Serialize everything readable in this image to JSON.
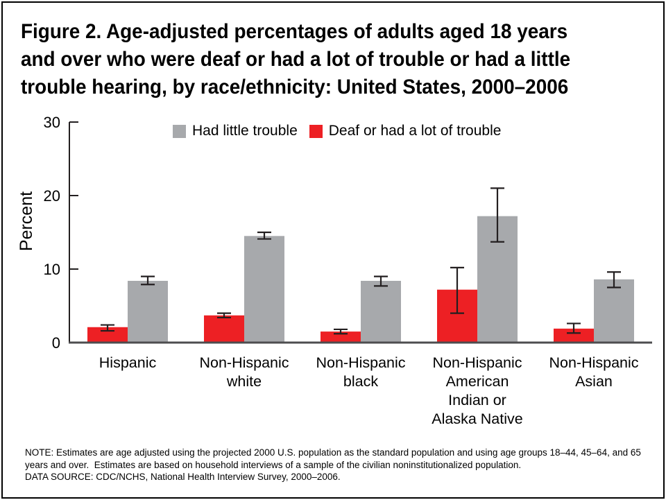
{
  "figure": {
    "title_lines": [
      "Figure 2. Age-adjusted percentages of adults aged 18 years",
      "and over who were deaf or had a lot of trouble or had a little",
      "trouble hearing, by race/ethnicity: United States, 2000–2006"
    ],
    "note_lines": [
      "NOTE: Estimates are age adjusted using the projected 2000 U.S. population as the standard population and using age groups 18–44, 45–64, and 65",
      "years and over.  Estimates are based on household interviews of a sample of the civilian noninstitutionalized population."
    ],
    "data_source": "DATA SOURCE: CDC/NCHS, National Health Interview Survey, 2000–2006."
  },
  "colors": {
    "little_trouble": "#a7a9ac",
    "deaf_lot": "#ed2024",
    "axis": "#231f20",
    "baseline": "#4d4d4f",
    "error_bar": "#231f20",
    "text": "#000000"
  },
  "chart_data": {
    "type": "bar",
    "title": "Figure 2. Age-adjusted percentages of adults aged 18 years and over who were deaf or had a lot of trouble or had a little trouble hearing, by race/ethnicity: United States, 2000–2006",
    "xlabel": "",
    "ylabel": "Percent",
    "ylim": [
      0,
      30
    ],
    "yticks": [
      0,
      10,
      20,
      30
    ],
    "grid": false,
    "legend_position": "top-center",
    "categories": [
      "Hispanic",
      "Non-Hispanic white",
      "Non-Hispanic black",
      "Non-Hispanic American Indian or Alaska Native",
      "Non-Hispanic Asian"
    ],
    "category_lines": [
      [
        "Hispanic"
      ],
      [
        "Non-Hispanic",
        "white"
      ],
      [
        "Non-Hispanic",
        "black"
      ],
      [
        "Non-Hispanic",
        "American",
        "Indian or",
        "Alaska Native"
      ],
      [
        "Non-Hispanic",
        "Asian"
      ]
    ],
    "series": [
      {
        "name": "Deaf or had a lot of trouble",
        "color_key": "deaf_lot",
        "values": [
          2.1,
          3.7,
          1.5,
          7.2,
          1.9
        ],
        "error_low": [
          1.6,
          3.4,
          1.2,
          4.0,
          1.3
        ],
        "error_high": [
          2.4,
          4.0,
          1.8,
          10.2,
          2.6
        ]
      },
      {
        "name": "Had little trouble",
        "color_key": "little_trouble",
        "values": [
          8.4,
          14.5,
          8.4,
          17.2,
          8.6
        ],
        "error_low": [
          7.9,
          14.1,
          7.7,
          13.7,
          7.5
        ],
        "error_high": [
          9.0,
          15.0,
          9.0,
          21.0,
          9.6
        ]
      }
    ],
    "legend": [
      {
        "label": "Had little trouble",
        "color_key": "little_trouble"
      },
      {
        "label": "Deaf or had a lot of trouble",
        "color_key": "deaf_lot"
      }
    ]
  }
}
